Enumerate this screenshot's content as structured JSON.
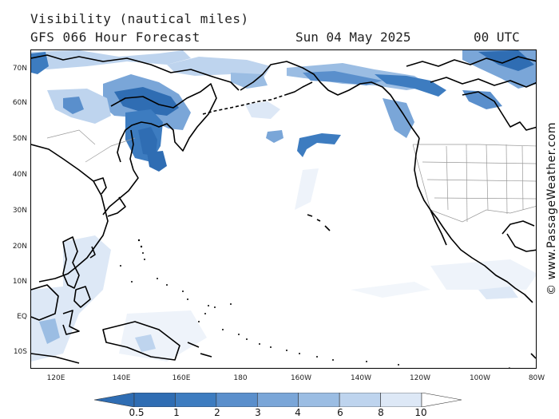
{
  "header": {
    "title": "Visibility (nautical miles)",
    "model": "GFS 066 Hour Forecast",
    "date": "Sun 04 May 2025",
    "time": "00 UTC"
  },
  "axes": {
    "lat_labels": [
      "70N",
      "60N",
      "50N",
      "40N",
      "30N",
      "20N",
      "10N",
      "EQ",
      "10S"
    ],
    "lon_labels": [
      "120E",
      "140E",
      "160E",
      "180",
      "160W",
      "140W",
      "120W",
      "100W",
      "80W"
    ]
  },
  "legend": {
    "values": [
      "0.5",
      "1",
      "2",
      "3",
      "4",
      "6",
      "8",
      "10"
    ],
    "colors": [
      "#2f6db3",
      "#3d7cc0",
      "#5a8fcc",
      "#7aa6d8",
      "#9bbde3",
      "#bed4ee",
      "#dde8f6",
      "#ffffff"
    ]
  },
  "credit": "© www.PassageWeather.com",
  "colors": {
    "land_outline": "#000000",
    "fog_dense": "#2f6db3",
    "fog_light": "#bed4ee"
  }
}
